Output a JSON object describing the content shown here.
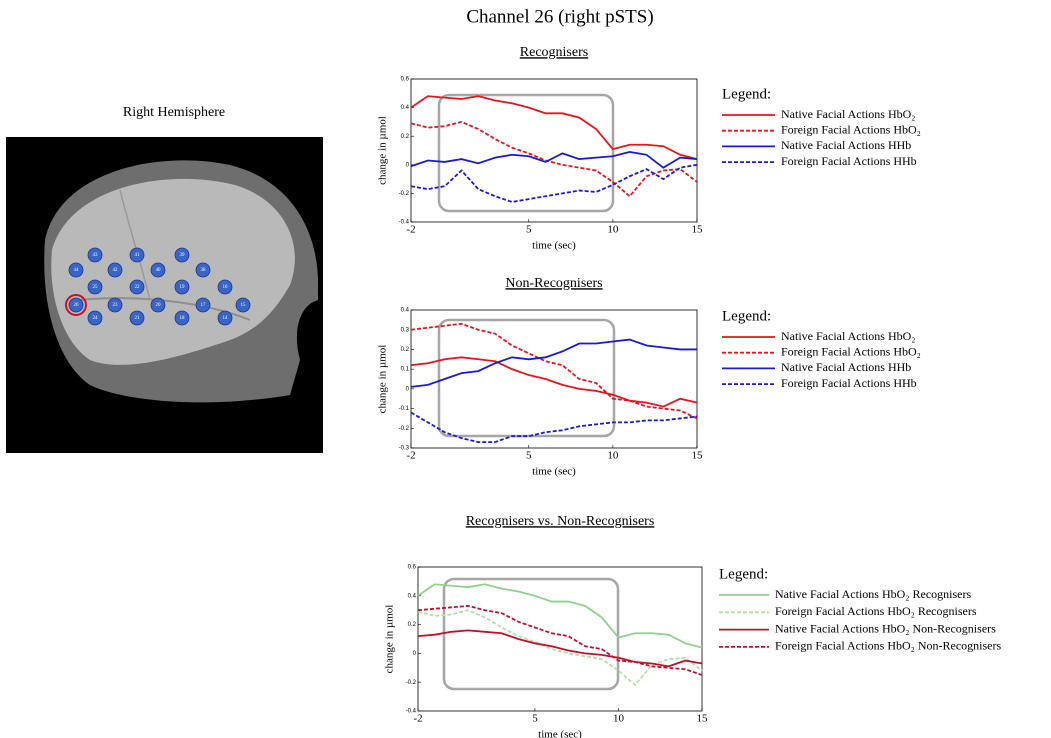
{
  "title": "Channel 26 (right pSTS)",
  "brain": {
    "title": "Right Hemisphere",
    "channels": [
      "43",
      "41",
      "39",
      "44",
      "42",
      "40",
      "38",
      "25",
      "22",
      "19",
      "16",
      "26",
      "23",
      "20",
      "17",
      "15",
      "24",
      "21",
      "18",
      "14"
    ]
  },
  "chart_data": [
    {
      "type": "line",
      "title": "Recognisers",
      "x": [
        -2,
        -1,
        0,
        1,
        2,
        3,
        4,
        5,
        6,
        7,
        8,
        9,
        10,
        11,
        12,
        13,
        14,
        15
      ],
      "xlim": [
        -2,
        15
      ],
      "xticks": [
        -2,
        5,
        10,
        15
      ],
      "ylim": [
        -0.4,
        0.6
      ],
      "yticks": [
        -0.4,
        -0.2,
        0,
        0.2,
        0.4,
        0.6
      ],
      "xlabel": "time (sec)",
      "ylabel": "change in µmol",
      "legend_title": "Legend:",
      "series": [
        {
          "name": "Native Facial Actions HbO₂",
          "color": "#e8141c",
          "dash": false,
          "values": [
            0.4,
            0.48,
            0.47,
            0.46,
            0.48,
            0.45,
            0.43,
            0.4,
            0.36,
            0.36,
            0.33,
            0.25,
            0.11,
            0.14,
            0.14,
            0.13,
            0.07,
            0.04
          ]
        },
        {
          "name": "Foreign Facial Actions HbO₂",
          "color": "#e8141c",
          "dash": true,
          "values": [
            0.29,
            0.26,
            0.27,
            0.3,
            0.25,
            0.18,
            0.12,
            0.08,
            0.03,
            0.0,
            -0.02,
            -0.04,
            -0.12,
            -0.22,
            -0.08,
            -0.04,
            -0.03,
            -0.12
          ]
        },
        {
          "name": "Native Facial Actions HHb",
          "color": "#1a1ad6",
          "dash": false,
          "values": [
            -0.01,
            0.03,
            0.02,
            0.04,
            0.01,
            0.05,
            0.07,
            0.06,
            0.02,
            0.08,
            0.04,
            0.05,
            0.06,
            0.09,
            0.07,
            -0.02,
            0.05,
            0.04
          ]
        },
        {
          "name": "Foreign Facial Actions HHb",
          "color": "#1a1ad6",
          "dash": true,
          "values": [
            -0.15,
            -0.17,
            -0.15,
            -0.04,
            -0.17,
            -0.22,
            -0.26,
            -0.24,
            -0.22,
            -0.2,
            -0.18,
            -0.19,
            -0.14,
            -0.08,
            -0.03,
            -0.1,
            -0.02,
            0.0
          ]
        }
      ]
    },
    {
      "type": "line",
      "title": "Non-Recognisers",
      "x": [
        -2,
        -1,
        0,
        1,
        2,
        3,
        4,
        5,
        6,
        7,
        8,
        9,
        10,
        11,
        12,
        13,
        14,
        15
      ],
      "xlim": [
        -2,
        15
      ],
      "xticks": [
        -2,
        5,
        10,
        15
      ],
      "ylim": [
        -0.3,
        0.4
      ],
      "yticks": [
        -0.3,
        -0.2,
        -0.1,
        0,
        0.1,
        0.2,
        0.3,
        0.4
      ],
      "xlabel": "time (sec)",
      "ylabel": "change in µmol",
      "legend_title": "Legend:",
      "series": [
        {
          "name": "Native Facial Actions HbO₂",
          "color": "#e8141c",
          "dash": false,
          "values": [
            0.12,
            0.13,
            0.15,
            0.16,
            0.15,
            0.14,
            0.1,
            0.07,
            0.05,
            0.02,
            0.0,
            -0.01,
            -0.03,
            -0.06,
            -0.07,
            -0.09,
            -0.05,
            -0.07
          ]
        },
        {
          "name": "Foreign Facial Actions HbO₂",
          "color": "#e8141c",
          "dash": true,
          "values": [
            0.3,
            0.31,
            0.32,
            0.33,
            0.3,
            0.28,
            0.22,
            0.18,
            0.14,
            0.12,
            0.05,
            0.03,
            -0.05,
            -0.06,
            -0.09,
            -0.1,
            -0.11,
            -0.15
          ]
        },
        {
          "name": "Native Facial Actions HHb",
          "color": "#1a1ad6",
          "dash": false,
          "values": [
            0.01,
            0.02,
            0.05,
            0.08,
            0.09,
            0.13,
            0.16,
            0.15,
            0.16,
            0.19,
            0.23,
            0.23,
            0.24,
            0.25,
            0.22,
            0.21,
            0.2,
            0.2
          ]
        },
        {
          "name": "Foreign Facial Actions HHb",
          "color": "#1a1ad6",
          "dash": true,
          "values": [
            -0.12,
            -0.17,
            -0.22,
            -0.25,
            -0.27,
            -0.27,
            -0.24,
            -0.24,
            -0.22,
            -0.21,
            -0.19,
            -0.18,
            -0.17,
            -0.17,
            -0.16,
            -0.16,
            -0.15,
            -0.14
          ]
        }
      ]
    },
    {
      "type": "line",
      "title": "Recognisers vs. Non-Recognisers",
      "x": [
        -2,
        -1,
        0,
        1,
        2,
        3,
        4,
        5,
        6,
        7,
        8,
        9,
        10,
        11,
        12,
        13,
        14,
        15
      ],
      "xlim": [
        -2,
        15
      ],
      "xticks": [
        -2,
        5,
        10,
        15
      ],
      "ylim": [
        -0.4,
        0.6
      ],
      "yticks": [
        -0.4,
        -0.2,
        0,
        0.2,
        0.4,
        0.6
      ],
      "xlabel": "time (sec)",
      "ylabel": "change in µmol",
      "legend_title": "Legend:",
      "series": [
        {
          "name": "Native Facial Actions HbO₂ Recognisers",
          "color": "#8fd18f",
          "dash": false,
          "values": [
            0.4,
            0.48,
            0.47,
            0.46,
            0.48,
            0.45,
            0.43,
            0.4,
            0.36,
            0.36,
            0.33,
            0.25,
            0.11,
            0.14,
            0.14,
            0.13,
            0.07,
            0.04
          ]
        },
        {
          "name": "Foreign Facial Actions HbO₂ Recognisers",
          "color": "#b5dfa5",
          "dash": true,
          "values": [
            0.29,
            0.26,
            0.27,
            0.3,
            0.25,
            0.18,
            0.12,
            0.08,
            0.03,
            0.0,
            -0.02,
            -0.04,
            -0.12,
            -0.22,
            -0.08,
            -0.04,
            -0.03,
            -0.12
          ]
        },
        {
          "name": "Native Facial Actions HbO₂ Non-Recognisers",
          "color": "#c40f2b",
          "dash": false,
          "values": [
            0.12,
            0.13,
            0.15,
            0.16,
            0.15,
            0.14,
            0.1,
            0.07,
            0.05,
            0.02,
            0.0,
            -0.01,
            -0.03,
            -0.06,
            -0.07,
            -0.09,
            -0.05,
            -0.07
          ]
        },
        {
          "name": "Foreign Facial Actions HbO₂ Non-Recognisers",
          "color": "#c40f2b",
          "dash": true,
          "values": [
            0.3,
            0.31,
            0.32,
            0.33,
            0.3,
            0.28,
            0.22,
            0.18,
            0.14,
            0.12,
            0.05,
            0.03,
            -0.05,
            -0.06,
            -0.09,
            -0.1,
            -0.11,
            -0.15
          ]
        }
      ]
    }
  ]
}
